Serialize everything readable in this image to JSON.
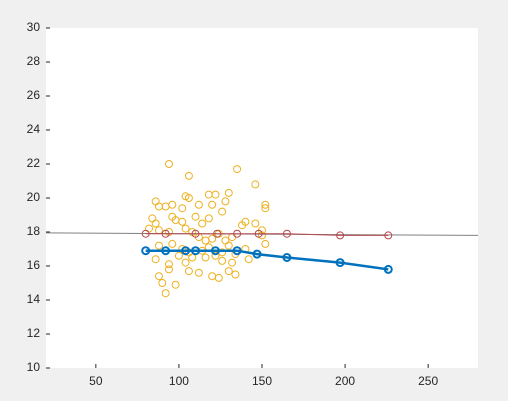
{
  "chart_data": {
    "type": "line",
    "xlim": [
      20,
      280
    ],
    "xticks": [
      50,
      100,
      150,
      200,
      250
    ],
    "ylim": [
      10,
      30
    ],
    "yticks": [
      10,
      12,
      14,
      16,
      18,
      20,
      22,
      24,
      26,
      28,
      30
    ],
    "series": [
      {
        "color": "#edb120",
        "markers": true,
        "line_width": 0,
        "x": [
          94,
          135,
          106,
          146,
          104,
          106,
          118,
          122,
          130,
          86,
          88,
          92,
          96,
          102,
          112,
          120,
          128,
          152,
          152,
          84,
          86,
          96,
          98,
          102,
          110,
          114,
          118,
          126,
          138,
          140,
          146,
          82,
          88,
          94,
          104,
          108,
          112,
          116,
          120,
          124,
          128,
          132,
          150,
          150,
          88,
          96,
          102,
          106,
          114,
          118,
          122,
          126,
          130,
          134,
          140,
          152,
          86,
          94,
          100,
          104,
          108,
          116,
          126,
          132,
          142,
          88,
          94,
          106,
          112,
          120,
          124,
          130,
          134,
          90,
          98,
          92
        ],
        "values": [
          22,
          21.7,
          21.3,
          20.8,
          20.1,
          20,
          20.2,
          20.2,
          20.3,
          19.8,
          19.5,
          19.5,
          19.6,
          19.4,
          19.6,
          19.6,
          19.8,
          19.6,
          19.4,
          18.8,
          18.5,
          18.9,
          18.7,
          18.6,
          18.9,
          18.5,
          18.8,
          19.2,
          18.4,
          18.6,
          18.5,
          18.2,
          18.1,
          18,
          18.2,
          18,
          17.7,
          17.5,
          17.6,
          17.9,
          17.5,
          17.7,
          18.1,
          17.8,
          17.2,
          17.3,
          17,
          16.8,
          16.9,
          17.1,
          16.6,
          16.8,
          17.2,
          16.7,
          17,
          17.3,
          16.4,
          16.1,
          16.6,
          16.2,
          16.5,
          16.5,
          16.3,
          16.2,
          16.4,
          15.4,
          15.8,
          15.7,
          15.6,
          15.4,
          15.3,
          15.7,
          15.5,
          15,
          14.9,
          14.4
        ]
      },
      {
        "color": "#808080",
        "markers": false,
        "line_width": 1,
        "x": [
          20,
          280
        ],
        "values": [
          17.95,
          17.8
        ]
      },
      {
        "color": "#b5474b",
        "markers": true,
        "line_width": 1,
        "x": [
          80,
          92,
          110,
          123,
          135,
          148,
          165,
          197,
          226
        ],
        "values": [
          17.9,
          17.9,
          17.9,
          17.9,
          17.9,
          17.9,
          17.9,
          17.8,
          17.8
        ]
      },
      {
        "color": "#0072bd",
        "markers": true,
        "line_width": 2.5,
        "x": [
          80,
          92,
          104,
          110,
          122,
          135,
          147,
          165,
          197,
          226
        ],
        "values": [
          16.9,
          16.9,
          16.9,
          16.9,
          16.9,
          16.9,
          16.7,
          16.5,
          16.2,
          15.8
        ]
      }
    ]
  }
}
